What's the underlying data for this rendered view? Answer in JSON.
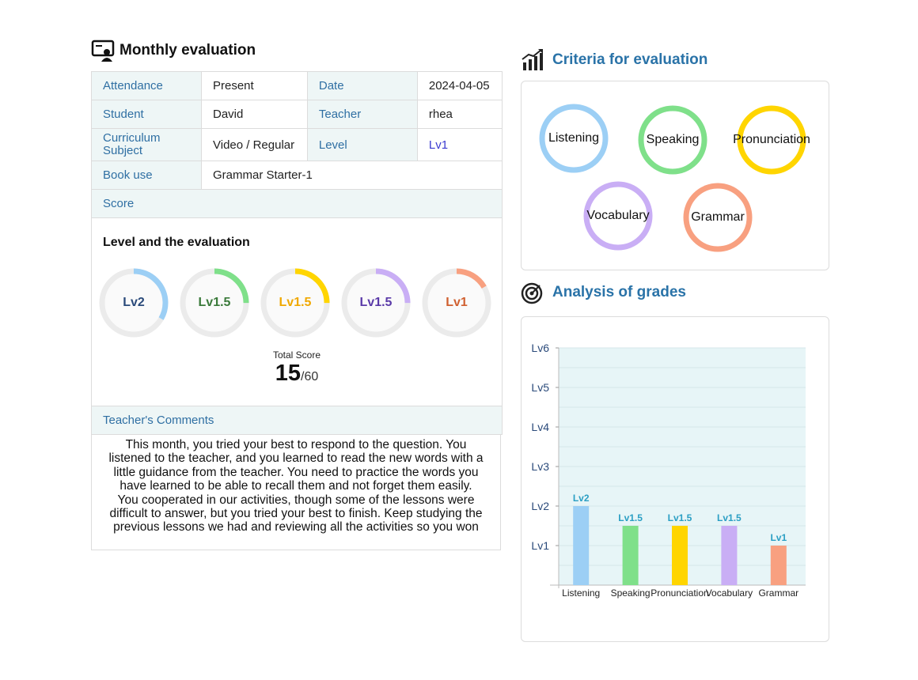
{
  "left": {
    "title": "Monthly evaluation",
    "title_icon": "teacher-board-icon",
    "info": {
      "attendance_label": "Attendance",
      "attendance_value": "Present",
      "date_label": "Date",
      "date_value": "2024-04-05",
      "student_label": "Student",
      "student_value": "David",
      "teacher_label": "Teacher",
      "teacher_value": "rhea",
      "curriculum_label_1": "Curriculum",
      "curriculum_label_2": "Subject",
      "curriculum_value": "Video / Regular",
      "level_label": "Level",
      "level_value": "Lv1",
      "book_label": "Book use",
      "book_value": "Grammar Starter-1"
    },
    "score_label": "Score",
    "level_heading": "Level and the evaluation",
    "rings": [
      {
        "label": "Lv2",
        "fraction": 0.333,
        "color": "#9ccff5",
        "text_color": "#2a4a7a"
      },
      {
        "label": "Lv1.5",
        "fraction": 0.25,
        "color": "#7fe08a",
        "text_color": "#3a7a3a"
      },
      {
        "label": "Lv1.5",
        "fraction": 0.25,
        "color": "#ffd500",
        "text_color": "#f0a800"
      },
      {
        "label": "Lv1.5",
        "fraction": 0.25,
        "color": "#c9aef5",
        "text_color": "#5a3aa8"
      },
      {
        "label": "Lv1",
        "fraction": 0.167,
        "color": "#f8a080",
        "text_color": "#d06030"
      }
    ],
    "total_label": "Total Score",
    "total_value": "15",
    "total_max": "/60",
    "comments_label": "Teacher's Comments",
    "comments_lines": [
      "This month, you tried your best to respond to the question. You",
      "listened to the teacher, and you learned to read the new words with a",
      "little guidance from the teacher. You need to practice the words you",
      "have learned to be able to recall them and not forget them easily.",
      "You cooperated in our activities, though some of the lessons were",
      "difficult to answer, but you tried your best to finish. Keep studying the",
      "previous lessons we had and reviewing all the activities so you won"
    ]
  },
  "right": {
    "criteria_title": "Criteria for evaluation",
    "criteria_icon": "bar-chart-growth-icon",
    "criteria": [
      {
        "label": "Listening",
        "color": "#9ccff5"
      },
      {
        "label": "Speaking",
        "color": "#7fe08a"
      },
      {
        "label": "Pronunciation",
        "color": "#ffd500"
      },
      {
        "label": "Vocabulary",
        "color": "#c9aef5"
      },
      {
        "label": "Grammar",
        "color": "#f8a080"
      }
    ],
    "analysis_title": "Analysis of grades",
    "analysis_icon": "target-icon"
  },
  "chart_data": {
    "type": "bar",
    "title": "",
    "xlabel": "",
    "ylabel": "",
    "categories": [
      "Listening",
      "Speaking",
      "Pronunciation",
      "Vocabulary",
      "Grammar"
    ],
    "values": [
      2,
      1.5,
      1.5,
      1.5,
      1
    ],
    "data_labels": [
      "Lv2",
      "Lv1.5",
      "Lv1.5",
      "Lv1.5",
      "Lv1"
    ],
    "colors": [
      "#9ccff5",
      "#7fe08a",
      "#ffd500",
      "#c9aef5",
      "#f8a080"
    ],
    "ylim": [
      0,
      6
    ],
    "yticks": [
      1,
      2,
      3,
      4,
      5,
      6
    ],
    "ytick_labels": [
      "Lv1",
      "Lv2",
      "Lv3",
      "Lv4",
      "Lv5",
      "Lv6"
    ],
    "grid": true,
    "plot_background": "#e7f5f7",
    "label_color": "#2b9fc4"
  }
}
